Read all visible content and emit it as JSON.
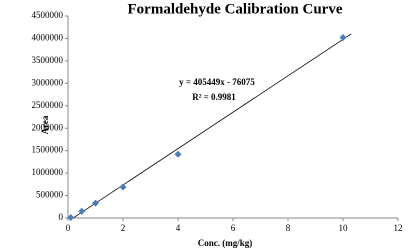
{
  "chart_data": {
    "type": "scatter",
    "title": "Formaldehyde Calibration Curve",
    "xlabel": "Conc. (mg/kg)",
    "ylabel": "Area",
    "x": [
      0.1,
      0.5,
      1,
      2,
      4,
      10
    ],
    "values": [
      10000,
      150000,
      330000,
      690000,
      1420000,
      4020000
    ],
    "color": "#4a7ebb",
    "trendline": {
      "x": [
        0.2,
        10.3
      ],
      "values": [
        5015,
        4100050
      ],
      "color": "#000000"
    },
    "annotations": [
      "y = 405449x - 76075",
      "R² = 0.9981"
    ],
    "xlim": [
      0,
      12
    ],
    "xticks": [
      0,
      2,
      4,
      6,
      8,
      10,
      12
    ],
    "ylim": [
      0,
      4500000
    ],
    "yticks": [
      0,
      500000,
      1000000,
      1500000,
      2000000,
      2500000,
      3000000,
      3500000,
      4000000,
      4500000
    ],
    "grid": false
  }
}
